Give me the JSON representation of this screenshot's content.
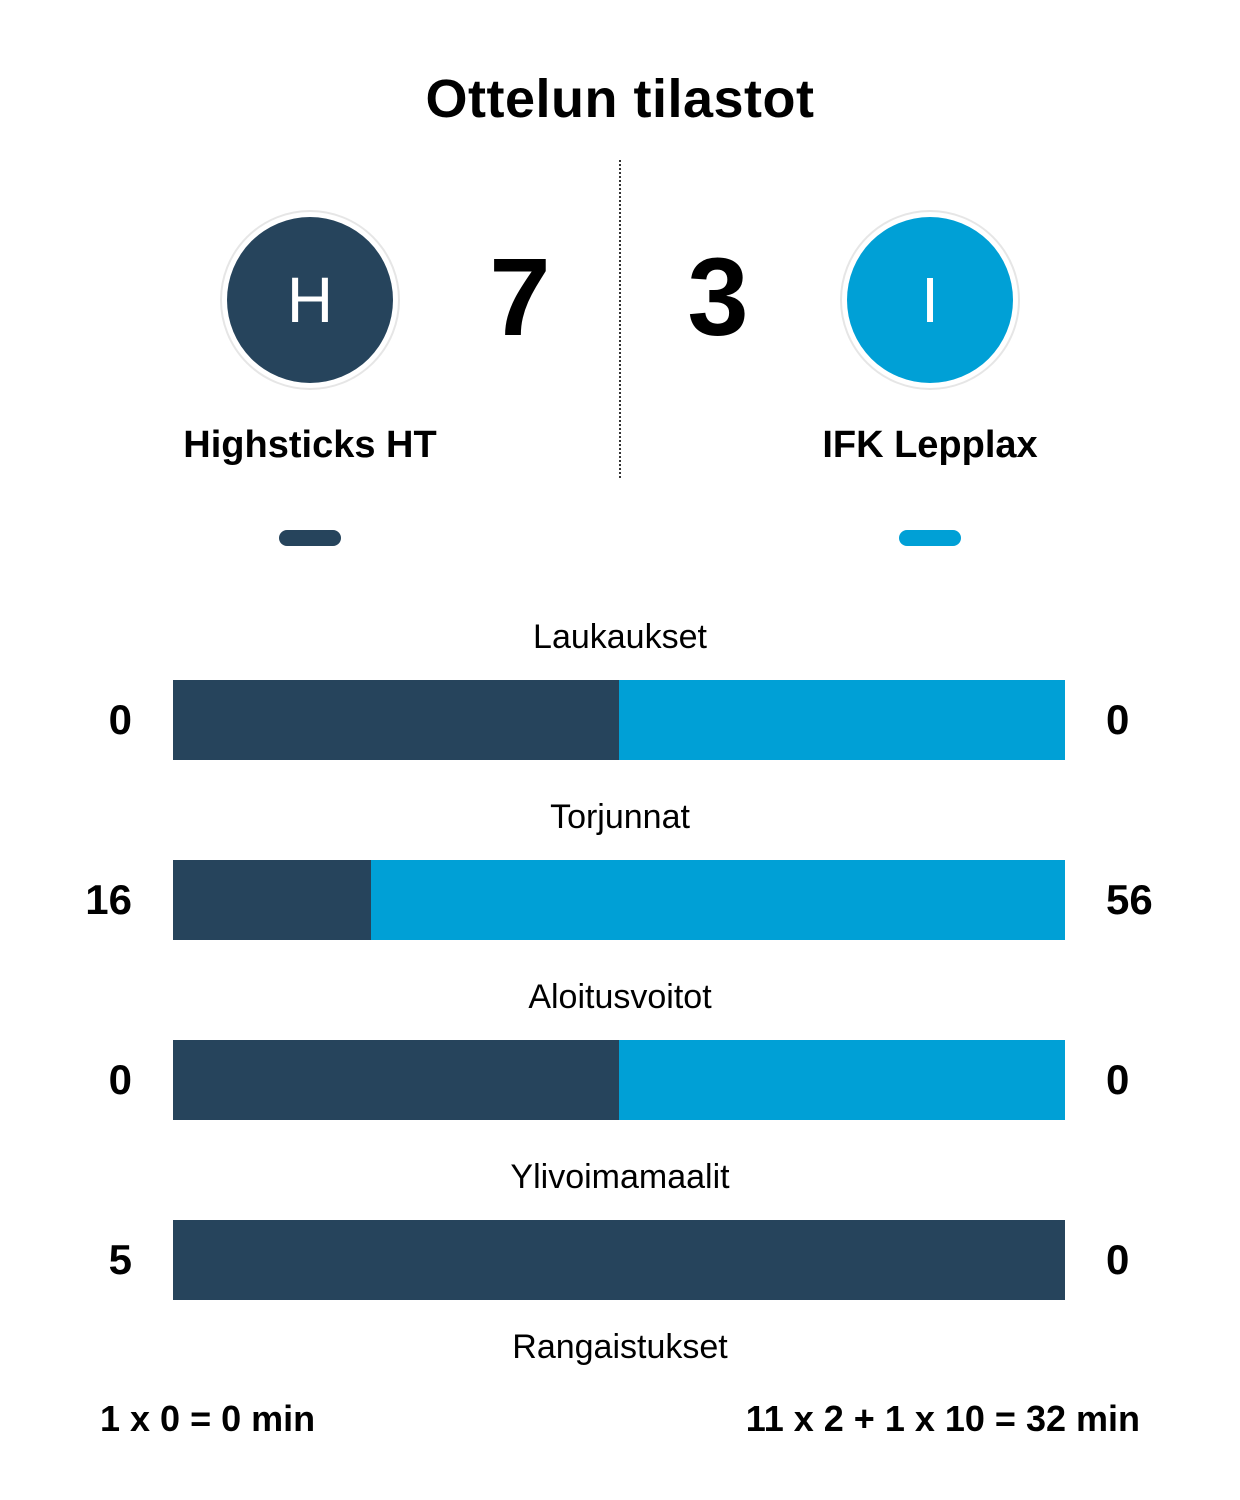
{
  "title": "Ottelun tilastot",
  "colors": {
    "home": "#26445c",
    "away": "#00a0d6"
  },
  "home": {
    "initial": "H",
    "name": "Highsticks HT",
    "score": "7"
  },
  "away": {
    "initial": "I",
    "name": "IFK Lepplax",
    "score": "3"
  },
  "stats": [
    {
      "label": "Laukaukset",
      "home": "0",
      "away": "0",
      "home_share": 0.5
    },
    {
      "label": "Torjunnat",
      "home": "16",
      "away": "56",
      "home_share": 0.222
    },
    {
      "label": "Aloitusvoitot",
      "home": "0",
      "away": "0",
      "home_share": 0.5
    },
    {
      "label": "Ylivoimamaalit",
      "home": "5",
      "away": "0",
      "home_share": 1.0
    }
  ],
  "penalties": {
    "label": "Rangaistukset",
    "home": "1 x 0 = 0 min",
    "away": "11 x 2 + 1 x 10 = 32 min"
  }
}
